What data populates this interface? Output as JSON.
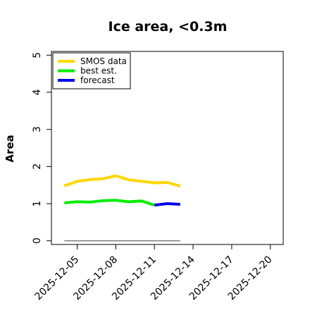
{
  "chart_data": {
    "type": "line",
    "title": "Ice area, <0.3m",
    "ylabel": "Area",
    "xlabel": "",
    "ylim": [
      -0.1,
      5.1
    ],
    "xlim": [
      "2025-12-03",
      "2025-12-21"
    ],
    "yticks": [
      "0",
      "1",
      "2",
      "3",
      "4",
      "5"
    ],
    "xticks": [
      {
        "label": "2025-12-05",
        "date": "2025-12-05",
        "color": "#000000"
      },
      {
        "label": "2025-12-08",
        "date": "2025-12-08",
        "color": "#000000"
      },
      {
        "label": "2025-12-11",
        "date": "2025-12-11",
        "color": "#228B22"
      },
      {
        "label": "2025-12-14",
        "date": "2025-12-14",
        "color": "#000000"
      },
      {
        "label": "2025-12-17",
        "date": "2025-12-17",
        "color": "#000000"
      },
      {
        "label": "2025-12-20",
        "date": "2025-12-20",
        "color": "#000000"
      }
    ],
    "legend_position": "top-left",
    "series": [
      {
        "name": "SMOS data",
        "color": "#FFD700",
        "x": [
          "2025-12-04",
          "2025-12-05",
          "2025-12-06",
          "2025-12-07",
          "2025-12-08",
          "2025-12-09",
          "2025-12-10",
          "2025-12-11",
          "2025-12-12",
          "2025-12-13"
        ],
        "y": [
          1.48,
          1.6,
          1.65,
          1.67,
          1.75,
          1.64,
          1.6,
          1.56,
          1.57,
          1.47
        ]
      },
      {
        "name": "best est.",
        "color": "#00EE00",
        "x": [
          "2025-12-04",
          "2025-12-05",
          "2025-12-06",
          "2025-12-07",
          "2025-12-08",
          "2025-12-09",
          "2025-12-10",
          "2025-12-11"
        ],
        "y": [
          1.02,
          1.05,
          1.04,
          1.08,
          1.09,
          1.05,
          1.07,
          0.96
        ]
      },
      {
        "name": "forecast",
        "color": "#0000EE",
        "x": [
          "2025-12-11",
          "2025-12-12",
          "2025-12-13"
        ],
        "y": [
          0.96,
          1.0,
          0.98
        ]
      }
    ],
    "reference_line": {
      "color": "#808080",
      "x": [
        "2025-12-04",
        "2025-12-13"
      ],
      "y": [
        0.0,
        0.0
      ]
    }
  }
}
